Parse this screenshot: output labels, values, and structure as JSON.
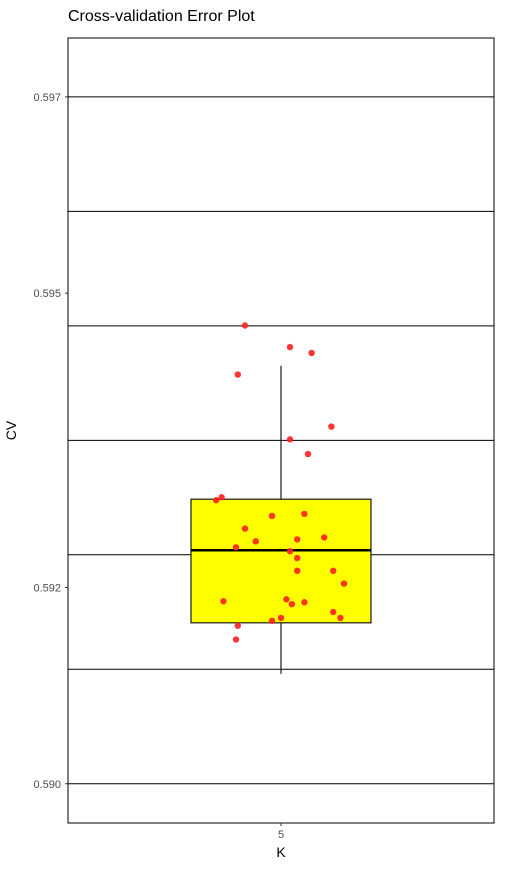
{
  "chart_data": {
    "type": "box",
    "title": "Cross-validation Error Plot",
    "xlabel": "K",
    "ylabel": "CV",
    "categories": [
      "5"
    ],
    "y_ticks": [
      0.59,
      0.592,
      0.595,
      0.597
    ],
    "y_tick_labels": [
      "0.590",
      "0.592",
      "0.595",
      "0.597"
    ],
    "ylim": [
      0.5896,
      0.5976
    ],
    "grid": "horizontal",
    "box": {
      "category": "5",
      "min": 0.59112,
      "q1": 0.59164,
      "median": 0.59238,
      "q3": 0.5929,
      "max": 0.59426
    },
    "points": [
      {
        "x": -0.36,
        "y": 0.59289
      },
      {
        "x": -0.33,
        "y": 0.59292
      },
      {
        "x": -0.25,
        "y": 0.59241
      },
      {
        "x": -0.2,
        "y": 0.5926
      },
      {
        "x": -0.14,
        "y": 0.59247
      },
      {
        "x": -0.32,
        "y": 0.59186
      },
      {
        "x": -0.24,
        "y": 0.59161
      },
      {
        "x": -0.25,
        "y": 0.59147
      },
      {
        "x": -0.2,
        "y": 0.59467
      },
      {
        "x": -0.24,
        "y": 0.59417
      },
      {
        "x": 0.05,
        "y": 0.59445
      },
      {
        "x": 0.17,
        "y": 0.59439
      },
      {
        "x": 0.05,
        "y": 0.59351
      },
      {
        "x": 0.15,
        "y": 0.59336
      },
      {
        "x": 0.28,
        "y": 0.59364
      },
      {
        "x": 0.05,
        "y": 0.59237
      },
      {
        "x": 0.09,
        "y": 0.59249
      },
      {
        "x": 0.13,
        "y": 0.59275
      },
      {
        "x": 0.09,
        "y": 0.5923
      },
      {
        "x": 0.09,
        "y": 0.59217
      },
      {
        "x": 0.24,
        "y": 0.59251
      },
      {
        "x": 0.29,
        "y": 0.59217
      },
      {
        "x": 0.35,
        "y": 0.59204
      },
      {
        "x": -0.05,
        "y": 0.59273
      },
      {
        "x": -0.05,
        "y": 0.59166
      },
      {
        "x": 0.0,
        "y": 0.59169
      },
      {
        "x": 0.03,
        "y": 0.59188
      },
      {
        "x": 0.06,
        "y": 0.59183
      },
      {
        "x": 0.13,
        "y": 0.59185
      },
      {
        "x": 0.29,
        "y": 0.59175
      },
      {
        "x": 0.33,
        "y": 0.59169
      }
    ],
    "colors": {
      "box_fill": "#ffff00",
      "box_stroke": "#1a1a1a",
      "median": "#000000",
      "points": "#ff2020",
      "grid": "#000000",
      "panel_border": "#000000"
    }
  }
}
